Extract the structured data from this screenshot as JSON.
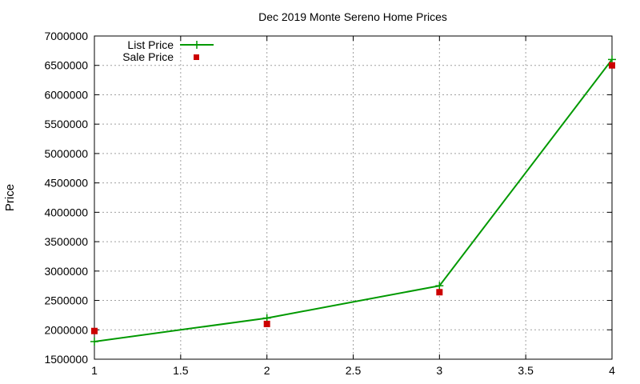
{
  "chart_data": {
    "type": "line",
    "title": "Dec 2019 Monte Sereno Home Prices",
    "xlabel": "",
    "ylabel": "Price",
    "xlim": [
      1,
      4
    ],
    "ylim": [
      1500000,
      7000000
    ],
    "xticks": [
      1,
      1.5,
      2,
      2.5,
      3,
      3.5,
      4
    ],
    "xtick_labels": [
      "1",
      "1.5",
      "2",
      "2.5",
      "3",
      "3.5",
      "4"
    ],
    "yticks": [
      1500000,
      2000000,
      2500000,
      3000000,
      3500000,
      4000000,
      4500000,
      5000000,
      5500000,
      6000000,
      6500000,
      7000000
    ],
    "ytick_labels": [
      "1500000",
      "2000000",
      "2500000",
      "3000000",
      "3500000",
      "4000000",
      "4500000",
      "5000000",
      "5500000",
      "6000000",
      "6500000",
      "7000000"
    ],
    "grid": true,
    "legend_position": "top-left",
    "series": [
      {
        "name": "List Price",
        "style": "line+plus-markers",
        "color": "#009900",
        "x": [
          1,
          2,
          3,
          4
        ],
        "y": [
          1800000,
          2200000,
          2750000,
          6600000
        ]
      },
      {
        "name": "Sale Price",
        "style": "square-markers",
        "color": "#cc0000",
        "x": [
          1,
          2,
          3,
          4
        ],
        "y": [
          1980000,
          2100000,
          2640000,
          6500000
        ]
      }
    ]
  }
}
